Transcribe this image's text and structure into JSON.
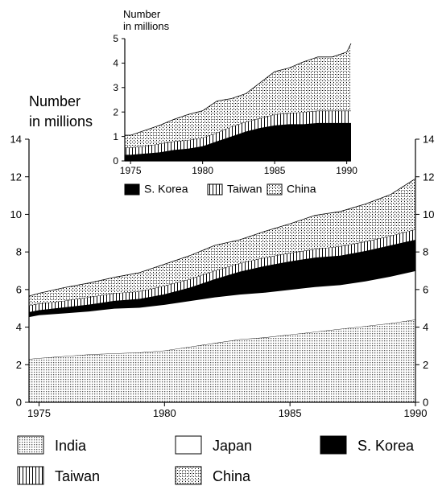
{
  "chart_data": [
    {
      "type": "area",
      "stacked": true,
      "ylabel_lines": [
        "Number",
        "in millions"
      ],
      "xticks": [
        1975,
        1980,
        1985,
        1990
      ],
      "yticks": [
        0,
        2,
        4,
        6,
        8,
        10,
        12,
        14
      ],
      "xlim": [
        1974.6,
        1990
      ],
      "ylim": [
        0,
        14
      ],
      "grid": false,
      "legend_position": "bottom",
      "x": [
        1974.6,
        1975,
        1976,
        1977,
        1978,
        1979,
        1980,
        1981,
        1982,
        1983,
        1984,
        1985,
        1986,
        1987,
        1988,
        1989,
        1990
      ],
      "series": [
        {
          "name": "India",
          "pattern": "dots",
          "values": [
            2.3,
            2.35,
            2.45,
            2.55,
            2.6,
            2.65,
            2.75,
            2.95,
            3.15,
            3.35,
            3.45,
            3.6,
            3.75,
            3.9,
            4.05,
            4.2,
            4.4
          ]
        },
        {
          "name": "Japan",
          "pattern": "white",
          "values": [
            2.25,
            2.3,
            2.3,
            2.3,
            2.4,
            2.4,
            2.45,
            2.45,
            2.45,
            2.4,
            2.4,
            2.4,
            2.4,
            2.35,
            2.4,
            2.5,
            2.6
          ]
        },
        {
          "name": "S. Korea",
          "pattern": "black",
          "values": [
            0.25,
            0.25,
            0.3,
            0.35,
            0.4,
            0.45,
            0.55,
            0.7,
            0.95,
            1.2,
            1.4,
            1.5,
            1.55,
            1.55,
            1.6,
            1.65,
            1.65
          ]
        },
        {
          "name": "Taiwan",
          "pattern": "vlines",
          "values": [
            0.35,
            0.35,
            0.35,
            0.4,
            0.4,
            0.4,
            0.45,
            0.45,
            0.45,
            0.45,
            0.45,
            0.45,
            0.45,
            0.5,
            0.5,
            0.5,
            0.55
          ]
        },
        {
          "name": "China",
          "pattern": "cross",
          "values": [
            0.5,
            0.55,
            0.7,
            0.75,
            0.85,
            1.0,
            1.15,
            1.25,
            1.35,
            1.25,
            1.4,
            1.55,
            1.8,
            1.85,
            2.0,
            2.2,
            2.7
          ]
        }
      ]
    },
    {
      "type": "area",
      "stacked": true,
      "ylabel_lines": [
        "Number",
        "in millions"
      ],
      "xticks": [
        1975,
        1980,
        1985,
        1990
      ],
      "yticks": [
        0,
        1,
        2,
        3,
        4,
        5
      ],
      "xlim": [
        1974.6,
        1990.3
      ],
      "ylim": [
        0,
        5
      ],
      "grid": false,
      "legend_position": "bottom",
      "x": [
        1974.6,
        1975,
        1976,
        1977,
        1978,
        1979,
        1980,
        1981,
        1982,
        1983,
        1984,
        1985,
        1986,
        1987,
        1988,
        1989,
        1990,
        1990.3
      ],
      "series": [
        {
          "name": "S. Korea",
          "pattern": "black",
          "values": [
            0.25,
            0.25,
            0.3,
            0.35,
            0.45,
            0.5,
            0.6,
            0.8,
            1.0,
            1.2,
            1.35,
            1.45,
            1.5,
            1.5,
            1.55,
            1.55,
            1.55,
            1.55
          ]
        },
        {
          "name": "Taiwan",
          "pattern": "vlines",
          "values": [
            0.3,
            0.3,
            0.3,
            0.35,
            0.35,
            0.35,
            0.35,
            0.35,
            0.4,
            0.4,
            0.4,
            0.45,
            0.45,
            0.5,
            0.5,
            0.5,
            0.5,
            0.5
          ]
        },
        {
          "name": "China",
          "pattern": "cross",
          "values": [
            0.5,
            0.5,
            0.65,
            0.75,
            0.9,
            1.05,
            1.1,
            1.3,
            1.15,
            1.15,
            1.45,
            1.75,
            1.85,
            2.05,
            2.2,
            2.2,
            2.4,
            2.75
          ]
        }
      ]
    }
  ]
}
